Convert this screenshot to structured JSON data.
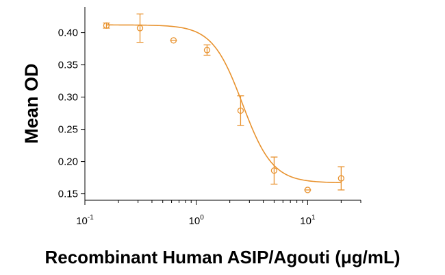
{
  "chart_data": {
    "type": "scatter",
    "title": "",
    "xlabel": "Recombinant Human ASIP/Agouti (μg/mL)",
    "ylabel": "Mean OD",
    "x_scale": "log",
    "xlim": [
      0.1,
      30
    ],
    "ylim": [
      0.14,
      0.44
    ],
    "x_ticks": [
      {
        "value": 0.1,
        "base": "10",
        "exp": "-1"
      },
      {
        "value": 1,
        "base": "10",
        "exp": "0"
      },
      {
        "value": 10,
        "base": "10",
        "exp": "1"
      }
    ],
    "y_ticks": [
      {
        "value": 0.15,
        "label": "0.15"
      },
      {
        "value": 0.2,
        "label": "0.20"
      },
      {
        "value": 0.25,
        "label": "0.25"
      },
      {
        "value": 0.3,
        "label": "0.30"
      },
      {
        "value": 0.35,
        "label": "0.35"
      },
      {
        "value": 0.4,
        "label": "0.40"
      }
    ],
    "grid": false,
    "legend": "none",
    "series": [
      {
        "color": "#E8922E",
        "points": [
          {
            "x": 0.156,
            "y": 0.411,
            "err": 0.004
          },
          {
            "x": 0.3125,
            "y": 0.407,
            "err": 0.022
          },
          {
            "x": 0.625,
            "y": 0.388,
            "err": 0.002
          },
          {
            "x": 1.25,
            "y": 0.373,
            "err": 0.008
          },
          {
            "x": 2.5,
            "y": 0.279,
            "err": 0.023
          },
          {
            "x": 5,
            "y": 0.186,
            "err": 0.021
          },
          {
            "x": 10,
            "y": 0.156,
            "err": 0.002
          },
          {
            "x": 20,
            "y": 0.174,
            "err": 0.018
          }
        ],
        "fit": {
          "model": "4PL",
          "top": 0.412,
          "bottom": 0.167,
          "ec50": 2.6,
          "hill": 3.2
        }
      }
    ]
  }
}
